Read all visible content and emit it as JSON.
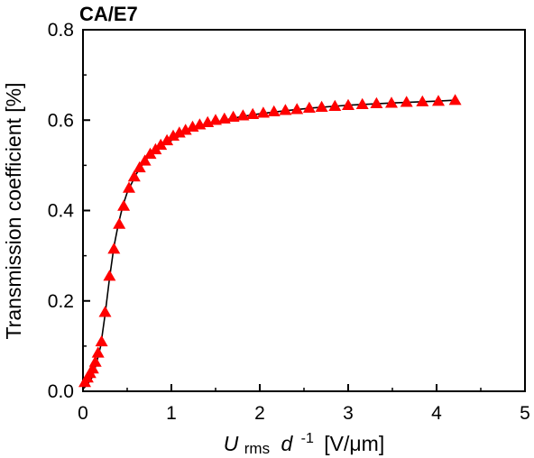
{
  "chart_data": {
    "type": "scatter",
    "title": "CA/E7",
    "ylabel": "Transmission coefficient [%]",
    "xlabel": {
      "u": "U",
      "u_sub": "rms",
      "d": "d",
      "exp": "-1",
      "unit": "[V/μm]"
    },
    "xlim": [
      0,
      5
    ],
    "ylim": [
      0,
      0.8
    ],
    "x_ticks": [
      0,
      1,
      2,
      3,
      4,
      5
    ],
    "x_tick_labels": [
      "0",
      "1",
      "2",
      "3",
      "4",
      "5"
    ],
    "y_ticks": [
      0,
      0.2,
      0.4,
      0.6,
      0.8
    ],
    "y_tick_labels": [
      "0.0",
      "0.2",
      "0.4",
      "0.6",
      "0.8"
    ],
    "grid": false,
    "series": [
      {
        "kind": "markers",
        "marker": "triangle",
        "color": "#ff0000",
        "x": [
          0.02,
          0.05,
          0.08,
          0.11,
          0.14,
          0.17,
          0.21,
          0.25,
          0.3,
          0.35,
          0.41,
          0.46,
          0.52,
          0.58,
          0.64,
          0.7,
          0.76,
          0.82,
          0.88,
          0.95,
          1.02,
          1.09,
          1.16,
          1.24,
          1.32,
          1.41,
          1.5,
          1.6,
          1.7,
          1.81,
          1.92,
          2.04,
          2.16,
          2.29,
          2.42,
          2.56,
          2.7,
          2.85,
          3.0,
          3.16,
          3.32,
          3.49,
          3.66,
          3.84,
          4.02,
          4.21
        ],
        "y": [
          0.02,
          0.03,
          0.04,
          0.05,
          0.065,
          0.085,
          0.11,
          0.175,
          0.255,
          0.315,
          0.37,
          0.41,
          0.45,
          0.475,
          0.495,
          0.51,
          0.525,
          0.535,
          0.545,
          0.555,
          0.565,
          0.572,
          0.578,
          0.585,
          0.59,
          0.595,
          0.6,
          0.603,
          0.607,
          0.61,
          0.613,
          0.616,
          0.619,
          0.622,
          0.624,
          0.627,
          0.629,
          0.631,
          0.633,
          0.635,
          0.637,
          0.638,
          0.64,
          0.641,
          0.642,
          0.644
        ]
      },
      {
        "kind": "line",
        "color": "#000000",
        "x": [
          0.0,
          0.05,
          0.1,
          0.15,
          0.2,
          0.25,
          0.3,
          0.35,
          0.4,
          0.45,
          0.5,
          0.6,
          0.7,
          0.8,
          0.9,
          1.0,
          1.2,
          1.4,
          1.6,
          1.8,
          2.0,
          2.3,
          2.6,
          3.0,
          3.5,
          4.0,
          4.2
        ],
        "y": [
          0.005,
          0.015,
          0.03,
          0.06,
          0.1,
          0.17,
          0.25,
          0.32,
          0.37,
          0.41,
          0.44,
          0.48,
          0.51,
          0.53,
          0.545,
          0.555,
          0.575,
          0.59,
          0.6,
          0.608,
          0.614,
          0.621,
          0.627,
          0.633,
          0.638,
          0.642,
          0.644
        ]
      }
    ]
  }
}
